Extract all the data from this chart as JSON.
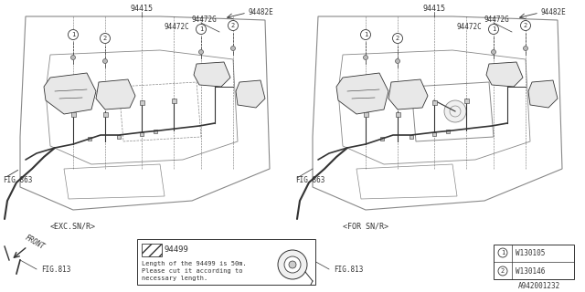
{
  "bg_color": "#ffffff",
  "line_color": "#333333",
  "gray_color": "#888888",
  "light_gray": "#bbbbbb",
  "legend_part": "94499",
  "legend_text1": "Length of the 94499 is 50m.",
  "legend_text2": "Please cut it according to",
  "legend_text3": "necessary length.",
  "ref1_num": "W130105",
  "ref2_num": "W130146",
  "diagram_id": "A942001232",
  "label_exc": "<EXC.SN/R>",
  "label_for": "<FOR SN/R>",
  "label_front": "FRONT",
  "fig863": "FIG.863",
  "fig813": "FIG.813",
  "part_94415": "94415",
  "part_94482E": "94482E",
  "part_94472C": "94472C",
  "part_94472G": "94472G"
}
